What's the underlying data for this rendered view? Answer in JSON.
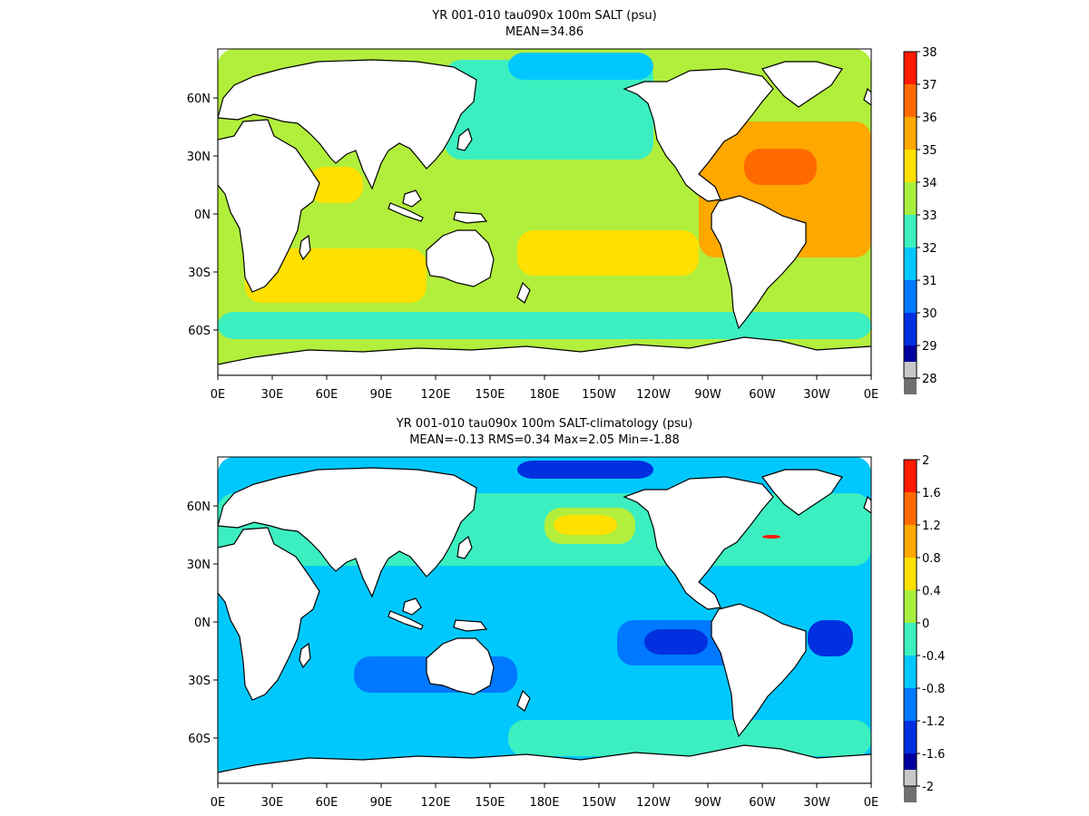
{
  "panels": [
    {
      "title": "YR 001-010 tau090x 100m SALT (psu)",
      "stats": "MEAN=34.86",
      "colorbar_labels": [
        "38",
        "37",
        "36",
        "35",
        "34",
        "33",
        "32",
        "31",
        "30",
        "29",
        "28"
      ]
    },
    {
      "title": "YR 001-010 tau090x 100m SALT-climatology (psu)",
      "stats": "MEAN=-0.13   RMS=0.34   Max=2.05   Min=-1.88",
      "colorbar_labels": [
        "2",
        "1.6",
        "1.2",
        "0.8",
        "0.4",
        "0",
        "-0.4",
        "-0.8",
        "-1.2",
        "-1.6",
        "-2"
      ]
    }
  ],
  "x_tick_labels": [
    "0E",
    "30E",
    "60E",
    "90E",
    "120E",
    "150E",
    "180E",
    "150W",
    "120W",
    "90W",
    "60W",
    "30W",
    "0E"
  ],
  "y_tick_labels": [
    "60N",
    "30N",
    "0N",
    "30S",
    "60S"
  ],
  "colorbar_colors": [
    "#ff1a00",
    "#ff6a00",
    "#ffa800",
    "#ffe000",
    "#a8f040",
    "#3cf0c0",
    "#00c8ff",
    "#0078ff",
    "#0030e0",
    "#0000a0",
    "#c8c8c8",
    "#707070"
  ],
  "colors": {
    "land": "#ffffff",
    "coast": "#000000"
  }
}
